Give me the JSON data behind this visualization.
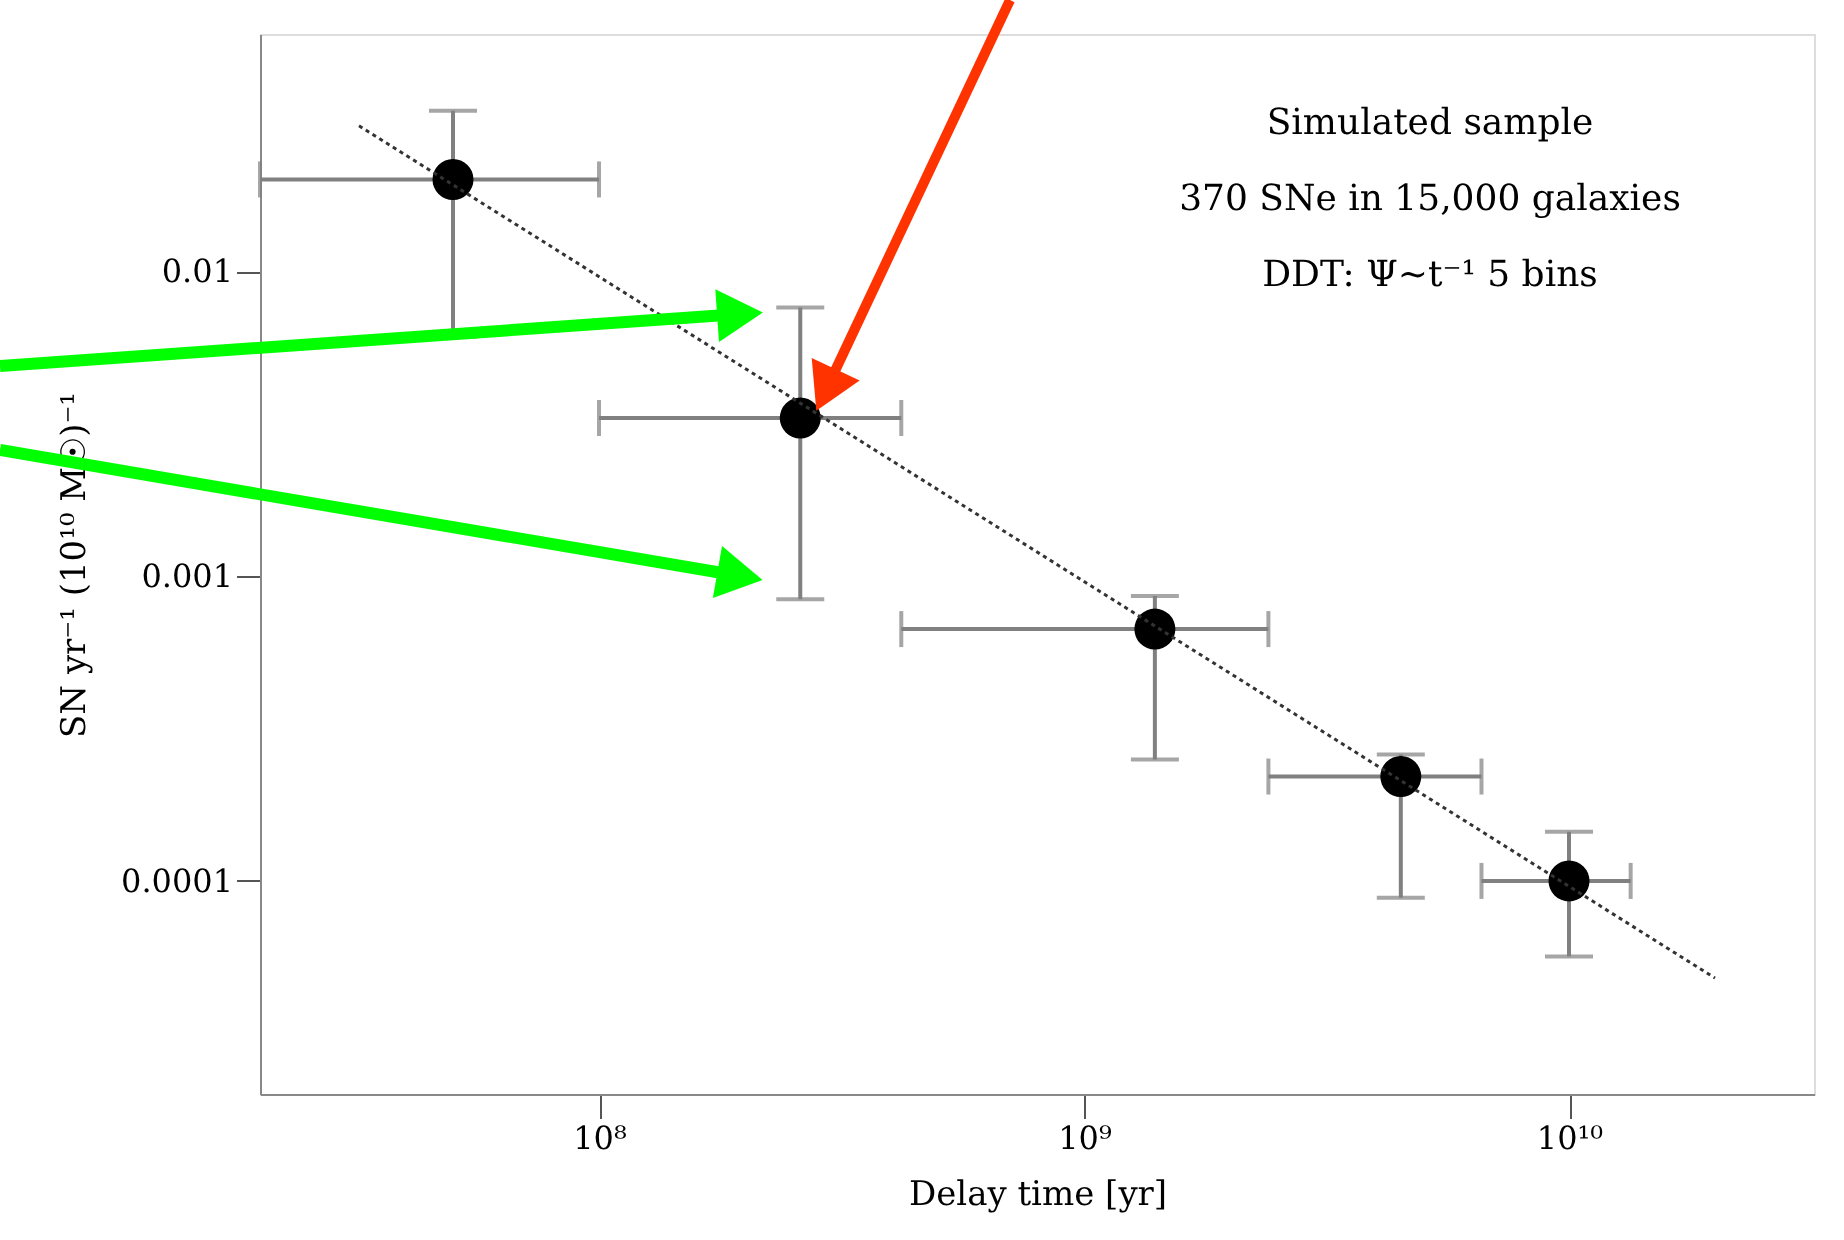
{
  "chart_data": {
    "type": "line",
    "xlabel": "Delay time [yr]",
    "ylabel": "SN yr⁻¹ (10¹⁰ M☉)⁻¹",
    "annotations": [
      "Simulated sample",
      "370 SNe in 15,000 galaxies",
      "DDT: Ψ~t⁻¹   5 bins"
    ],
    "series": [
      {
        "type": "scatter",
        "color": "#000000",
        "marker": "circle",
        "x": [
          50000000.0,
          260000000.0,
          1400000000.0,
          4500000000.0,
          10000000000.0
        ],
        "values": [
          0.02,
          0.0033,
          0.00067,
          0.00022,
          0.0001
        ],
        "errors": [
          [
            0.0061,
            0.0336
          ],
          [
            0.00084,
            0.0076
          ],
          [
            0.00025,
            0.00086
          ],
          [
            8.8e-05,
            0.00026
          ],
          [
            5.65e-05,
            0.000145
          ]
        ],
        "xerrors": [
          [
            20000000.0,
            100000000.0
          ],
          [
            100000000.0,
            420000000.0
          ],
          [
            420000000.0,
            2400000000.0
          ],
          [
            2400000000.0,
            6600000000.0
          ],
          [
            6600000000.0,
            13400000000.0
          ]
        ]
      },
      {
        "color": "#333333",
        "line_style": "dotted",
        "x": [
          32000000.0,
          20000000000.0
        ],
        "values": [
          0.03,
          4.8e-05
        ]
      }
    ],
    "xlim": [
      20000000.0,
      32000000000.0
    ],
    "ylim": [
      2e-05,
      0.06
    ],
    "xticks": [
      {
        "value": 100000000.0,
        "label": "10⁸"
      },
      {
        "value": 1000000000.0,
        "label": "10⁹"
      },
      {
        "value": 10000000000.0,
        "label": "10¹⁰"
      }
    ],
    "yticks": [
      0.0001,
      0.001,
      0.01
    ],
    "log": "xy",
    "grid": false
  }
}
